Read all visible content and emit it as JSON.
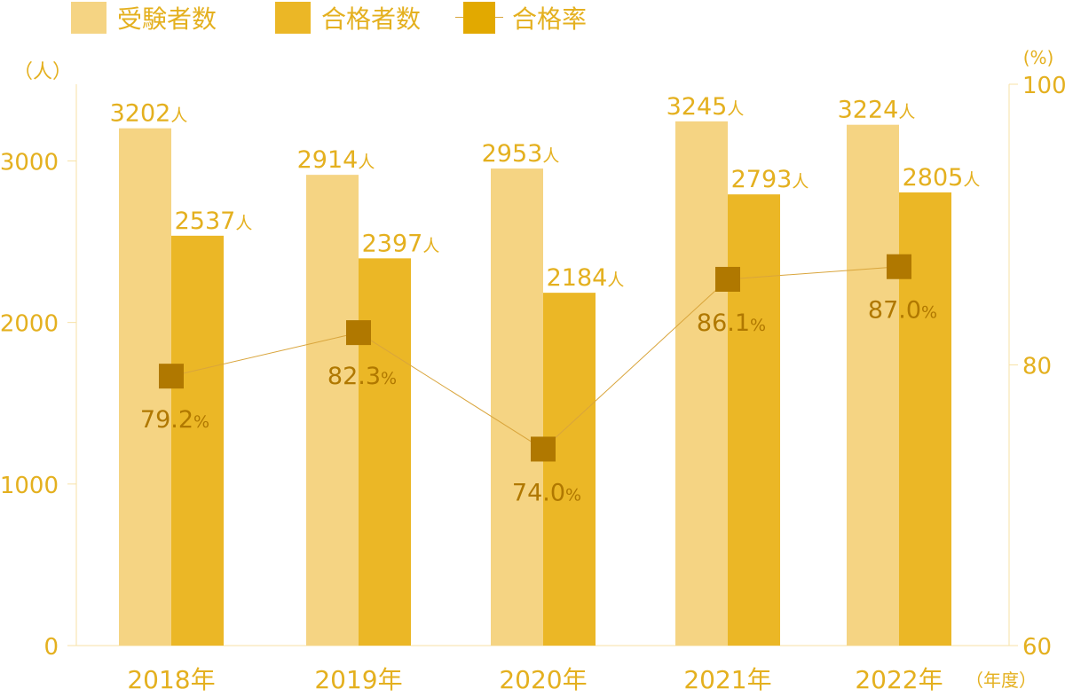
{
  "legend": {
    "applicants": "受験者数",
    "passers": "合格者数",
    "rate": "合格率"
  },
  "chart_data": {
    "type": "bar",
    "categories": [
      "2018年",
      "2019年",
      "2020年",
      "2021年",
      "2022年"
    ],
    "series": [
      {
        "name": "受験者数",
        "type": "bar",
        "axis": "left",
        "values": [
          3202,
          2914,
          2953,
          3245,
          3224
        ],
        "unit": "人",
        "color": "#f5d483"
      },
      {
        "name": "合格者数",
        "type": "bar",
        "axis": "left",
        "values": [
          2537,
          2397,
          2184,
          2793,
          2805
        ],
        "unit": "人",
        "color": "#ebb726"
      },
      {
        "name": "合格率",
        "type": "line",
        "axis": "right",
        "values": [
          79.2,
          82.3,
          74.0,
          86.1,
          87.0
        ],
        "unit": "%",
        "color": "#b07800"
      }
    ],
    "data_labels": {
      "applicants": [
        "3202",
        "2914",
        "2953",
        "3245",
        "3224"
      ],
      "passers": [
        "2537",
        "2397",
        "2184",
        "2793",
        "2805"
      ],
      "rate": [
        "79.2",
        "82.3",
        "74.0",
        "86.1",
        "87.0"
      ]
    },
    "y_left": {
      "unit_label": "（人）",
      "range": [
        0,
        3500
      ],
      "ticks": [
        0,
        1000,
        2000,
        3000
      ]
    },
    "y_right": {
      "unit_label": "(%)",
      "range": [
        60,
        100
      ],
      "ticks": [
        60,
        80,
        100
      ]
    },
    "x_unit_label": "（年度）",
    "grid": false,
    "legend_position": "top-left"
  },
  "colors": {
    "applicants_bar": "#f5d483",
    "passers_bar": "#ebb726",
    "rate_marker": "#b07800",
    "rate_line": "#d9a53c",
    "axis_text": "#e4b01f",
    "rate_text": "#b07800",
    "axis_line": "#f7e2a6",
    "legend_rate_marker": "#e2a900"
  }
}
